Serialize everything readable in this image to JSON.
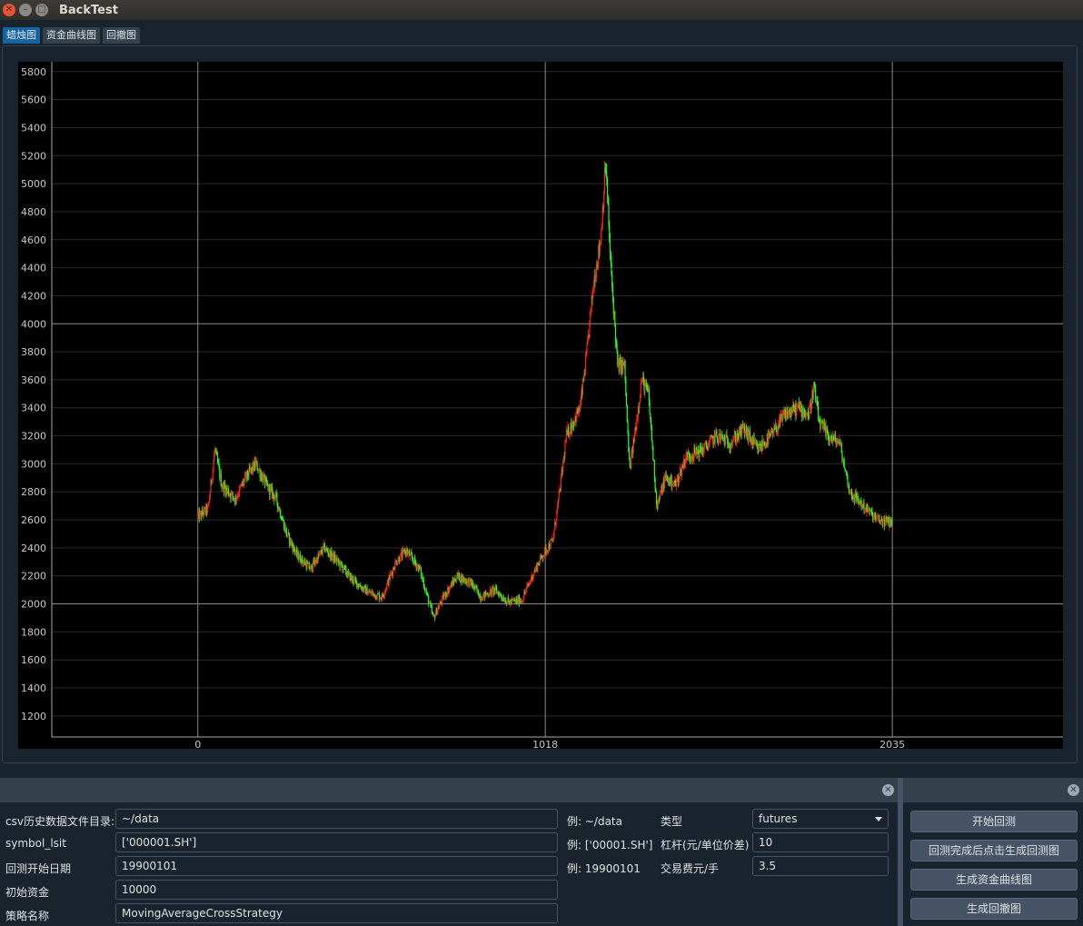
{
  "window": {
    "title": "BackTest"
  },
  "tabs": [
    "蜡烛图",
    "资金曲线图",
    "回撤图"
  ],
  "chart_data": {
    "type": "candlestick",
    "y_ticks": [
      1200,
      1400,
      1600,
      1800,
      2000,
      2200,
      2400,
      2600,
      2800,
      3000,
      3200,
      3400,
      3600,
      3800,
      4000,
      4200,
      4400,
      4600,
      4800,
      5000,
      5200,
      5400,
      5600,
      5800
    ],
    "x_ticks": [
      0,
      1018,
      2035
    ],
    "ylim": [
      1050,
      5870
    ],
    "xlim": [
      -428,
      2535
    ],
    "grid": true,
    "up_color": "#ff2020",
    "down_color": "#20ff20",
    "close_path": [
      [
        0,
        2620
      ],
      [
        30,
        2680
      ],
      [
        50,
        3100
      ],
      [
        70,
        2850
      ],
      [
        110,
        2750
      ],
      [
        140,
        2900
      ],
      [
        170,
        3000
      ],
      [
        200,
        2850
      ],
      [
        230,
        2750
      ],
      [
        260,
        2500
      ],
      [
        290,
        2350
      ],
      [
        330,
        2250
      ],
      [
        370,
        2400
      ],
      [
        410,
        2300
      ],
      [
        450,
        2180
      ],
      [
        500,
        2080
      ],
      [
        540,
        2050
      ],
      [
        580,
        2300
      ],
      [
        610,
        2380
      ],
      [
        650,
        2250
      ],
      [
        690,
        1900
      ],
      [
        720,
        2050
      ],
      [
        760,
        2200
      ],
      [
        800,
        2150
      ],
      [
        830,
        2050
      ],
      [
        870,
        2100
      ],
      [
        910,
        2010
      ],
      [
        950,
        2030
      ],
      [
        980,
        2200
      ],
      [
        1010,
        2350
      ],
      [
        1040,
        2450
      ],
      [
        1060,
        2800
      ],
      [
        1080,
        3200
      ],
      [
        1100,
        3300
      ],
      [
        1120,
        3400
      ],
      [
        1140,
        3800
      ],
      [
        1160,
        4300
      ],
      [
        1180,
        4600
      ],
      [
        1195,
        5150
      ],
      [
        1210,
        4400
      ],
      [
        1230,
        3700
      ],
      [
        1250,
        3700
      ],
      [
        1265,
        2950
      ],
      [
        1285,
        3300
      ],
      [
        1300,
        3600
      ],
      [
        1320,
        3500
      ],
      [
        1345,
        2700
      ],
      [
        1370,
        2900
      ],
      [
        1400,
        2850
      ],
      [
        1430,
        3050
      ],
      [
        1480,
        3100
      ],
      [
        1520,
        3200
      ],
      [
        1560,
        3150
      ],
      [
        1600,
        3250
      ],
      [
        1640,
        3100
      ],
      [
        1680,
        3200
      ],
      [
        1720,
        3350
      ],
      [
        1760,
        3400
      ],
      [
        1790,
        3350
      ],
      [
        1805,
        3550
      ],
      [
        1820,
        3300
      ],
      [
        1845,
        3200
      ],
      [
        1880,
        3150
      ],
      [
        1910,
        2800
      ],
      [
        1950,
        2700
      ],
      [
        1990,
        2600
      ],
      [
        2035,
        2580
      ]
    ]
  },
  "form": {
    "csv_dir_label": "csv历史数据文件目录:",
    "csv_dir_value": "~/data",
    "csv_dir_example": "例: ~/data",
    "symbol_label": "symbol_lsit",
    "symbol_value": "['000001.SH']",
    "symbol_example": "例: ['00001.SH']",
    "start_label": "回测开始日期",
    "start_value": "19900101",
    "start_example": "例: 19900101",
    "capital_label": "初始资金",
    "capital_value": "10000",
    "strategy_label": "策略名称",
    "strategy_value": "MovingAverageCrossStrategy",
    "type_label": "类型",
    "type_value": "futures",
    "leverage_label": "杠杆(元/单位价差)",
    "leverage_value": "10",
    "fee_label": "交易费元/手",
    "fee_value": "3.5"
  },
  "buttons": {
    "start": "开始回测",
    "gen_backtest": "回测完成后点击生成回测图",
    "gen_equity": "生成资金曲线图",
    "gen_drawdown": "生成回撤图"
  },
  "icons": {
    "close": "✕",
    "minimize": "–",
    "maximize": "□",
    "dock_close": "✕"
  }
}
